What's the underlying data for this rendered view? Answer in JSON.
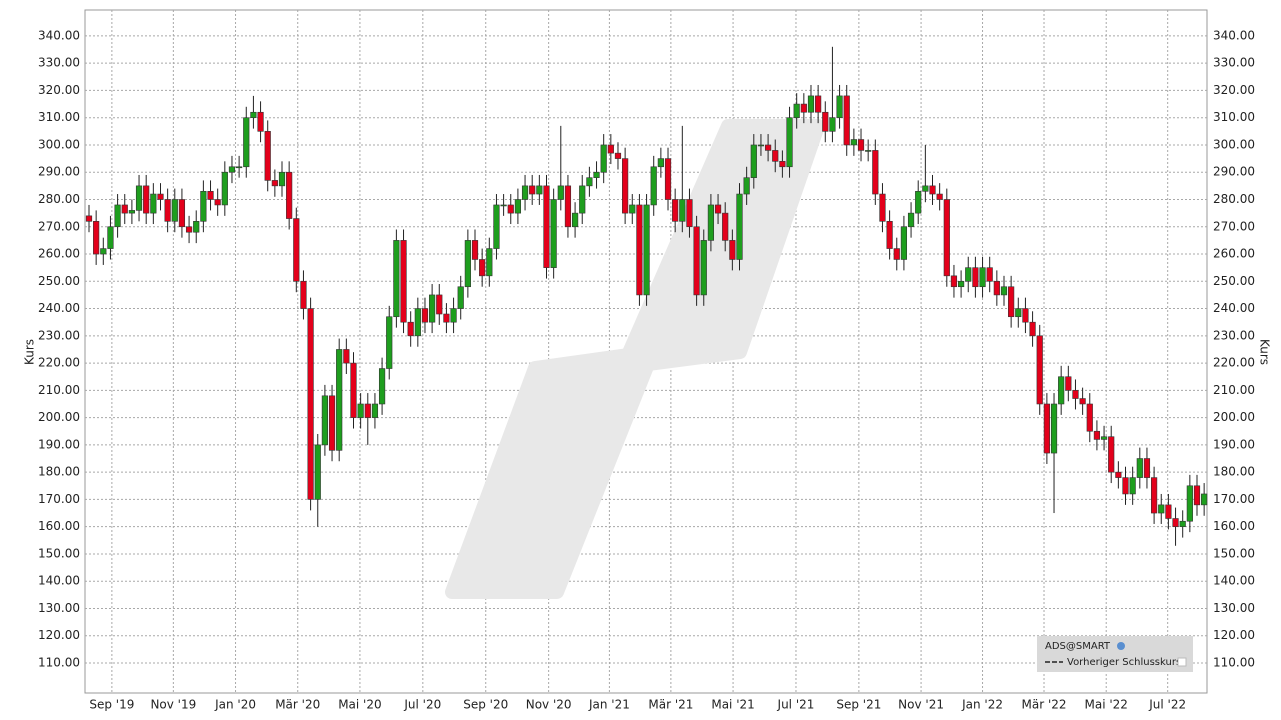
{
  "chart_data": {
    "type": "candlestick",
    "y_label": "Kurs",
    "legend": [
      "ADS@SMART",
      "Vorheriger Schlusskurs"
    ],
    "up_color": "#1e9e1e",
    "down_color": "#e3001b",
    "grid": true,
    "open": [
      274,
      272,
      260,
      262,
      270,
      278,
      275,
      276,
      285,
      275,
      282,
      280,
      272,
      280,
      270,
      268,
      272,
      283,
      280,
      278,
      290,
      292,
      292,
      310,
      312,
      305,
      287,
      285,
      290,
      273,
      250,
      240,
      170,
      190,
      208,
      188,
      225,
      220,
      200,
      205,
      200,
      205,
      218,
      237,
      265,
      235,
      230,
      240,
      235,
      245,
      238,
      235,
      240,
      248,
      265,
      258,
      252,
      262,
      278,
      278,
      275,
      280,
      285,
      282,
      285,
      255,
      280,
      285,
      270,
      275,
      285,
      288,
      290,
      300,
      297,
      295,
      275,
      278,
      245,
      278,
      292,
      295,
      280,
      272,
      280,
      270,
      245,
      265,
      278,
      275,
      265,
      258,
      282,
      288,
      300,
      300,
      298,
      294,
      292,
      310,
      315,
      312,
      318,
      312,
      305,
      310,
      318,
      300,
      302,
      298,
      298,
      282,
      272,
      262,
      258,
      270,
      275,
      283,
      285,
      282,
      280,
      252,
      248,
      250,
      255,
      248,
      255,
      250,
      245,
      248,
      237,
      240,
      235,
      230,
      205,
      187,
      205,
      215,
      210,
      207,
      205,
      195,
      192,
      193,
      180,
      178,
      172,
      178,
      185,
      178,
      165,
      168,
      163,
      160,
      162,
      175,
      168
    ],
    "high": [
      278,
      276,
      266,
      274,
      282,
      282,
      280,
      289,
      289,
      286,
      286,
      284,
      284,
      284,
      274,
      276,
      287,
      287,
      284,
      294,
      296,
      296,
      314,
      318,
      316,
      309,
      291,
      294,
      294,
      277,
      254,
      244,
      194,
      212,
      212,
      229,
      229,
      224,
      209,
      209,
      209,
      222,
      241,
      269,
      269,
      239,
      244,
      244,
      249,
      249,
      242,
      244,
      252,
      269,
      269,
      262,
      266,
      282,
      282,
      282,
      284,
      289,
      289,
      289,
      289,
      284,
      307,
      289,
      279,
      289,
      292,
      294,
      304,
      304,
      301,
      299,
      282,
      282,
      282,
      296,
      299,
      299,
      284,
      307,
      284,
      274,
      269,
      282,
      282,
      279,
      269,
      286,
      292,
      304,
      304,
      304,
      302,
      298,
      314,
      319,
      319,
      322,
      322,
      316,
      336,
      322,
      322,
      306,
      306,
      302,
      302,
      286,
      276,
      266,
      274,
      279,
      287,
      300,
      289,
      286,
      284,
      256,
      254,
      259,
      259,
      259,
      259,
      254,
      252,
      252,
      244,
      244,
      239,
      234,
      209,
      209,
      219,
      219,
      214,
      211,
      209,
      199,
      197,
      197,
      184,
      182,
      182,
      189,
      189,
      182,
      172,
      172,
      167,
      166,
      179,
      179,
      176
    ],
    "low": [
      268,
      256,
      256,
      258,
      266,
      271,
      271,
      272,
      271,
      271,
      276,
      268,
      268,
      266,
      264,
      264,
      268,
      276,
      274,
      274,
      286,
      288,
      288,
      306,
      301,
      283,
      281,
      281,
      269,
      246,
      236,
      166,
      160,
      186,
      184,
      184,
      216,
      196,
      196,
      190,
      196,
      201,
      214,
      233,
      231,
      226,
      226,
      231,
      231,
      234,
      231,
      231,
      236,
      244,
      254,
      248,
      248,
      258,
      274,
      271,
      271,
      276,
      278,
      278,
      251,
      251,
      276,
      266,
      266,
      271,
      281,
      284,
      286,
      293,
      291,
      271,
      271,
      241,
      241,
      274,
      288,
      276,
      268,
      268,
      266,
      241,
      241,
      261,
      271,
      261,
      254,
      254,
      278,
      284,
      296,
      294,
      290,
      288,
      288,
      306,
      308,
      308,
      308,
      301,
      301,
      306,
      296,
      296,
      294,
      294,
      278,
      268,
      258,
      254,
      254,
      266,
      271,
      279,
      278,
      276,
      248,
      244,
      244,
      246,
      244,
      244,
      246,
      241,
      241,
      233,
      233,
      231,
      226,
      201,
      183,
      165,
      201,
      206,
      203,
      201,
      191,
      188,
      188,
      176,
      174,
      168,
      168,
      174,
      174,
      161,
      161,
      159,
      153,
      156,
      158,
      164,
      164
    ],
    "close": [
      272,
      260,
      262,
      270,
      278,
      275,
      276,
      285,
      275,
      282,
      280,
      272,
      280,
      270,
      268,
      272,
      283,
      280,
      278,
      290,
      292,
      292,
      310,
      312,
      305,
      287,
      285,
      290,
      273,
      250,
      240,
      170,
      190,
      208,
      188,
      225,
      220,
      200,
      205,
      200,
      205,
      218,
      237,
      265,
      235,
      230,
      240,
      235,
      245,
      238,
      235,
      240,
      248,
      265,
      258,
      252,
      262,
      278,
      278,
      275,
      280,
      285,
      282,
      285,
      255,
      280,
      285,
      270,
      275,
      285,
      288,
      290,
      300,
      297,
      295,
      275,
      278,
      245,
      278,
      292,
      295,
      280,
      272,
      280,
      270,
      245,
      265,
      278,
      275,
      265,
      258,
      282,
      288,
      300,
      300,
      298,
      294,
      292,
      310,
      315,
      312,
      318,
      312,
      305,
      310,
      318,
      300,
      302,
      298,
      298,
      282,
      272,
      262,
      258,
      270,
      275,
      283,
      285,
      282,
      280,
      252,
      248,
      250,
      255,
      248,
      255,
      250,
      245,
      248,
      237,
      240,
      235,
      230,
      205,
      187,
      205,
      215,
      210,
      207,
      205,
      195,
      192,
      193,
      180,
      178,
      172,
      178,
      185,
      178,
      165,
      168,
      163,
      160,
      162,
      175,
      168,
      172
    ],
    "xlim": [
      -0.56,
      156.4
    ],
    "xticks": [
      {
        "value": 3.2,
        "label": "Sep '19"
      },
      {
        "value": 11.8,
        "label": "Nov '19"
      },
      {
        "value": 20.5,
        "label": "Jan '20"
      },
      {
        "value": 29.2,
        "label": "Mär '20"
      },
      {
        "value": 37.9,
        "label": "Mai '20"
      },
      {
        "value": 46.7,
        "label": "Jul '20"
      },
      {
        "value": 55.5,
        "label": "Sep '20"
      },
      {
        "value": 64.3,
        "label": "Nov '20"
      },
      {
        "value": 72.8,
        "label": "Jan '21"
      },
      {
        "value": 81.4,
        "label": "Mär '21"
      },
      {
        "value": 90.1,
        "label": "Mai '21"
      },
      {
        "value": 98.9,
        "label": "Jul '21"
      },
      {
        "value": 107.7,
        "label": "Sep '21"
      },
      {
        "value": 116.4,
        "label": "Nov '21"
      },
      {
        "value": 125.0,
        "label": "Jan '22"
      },
      {
        "value": 133.6,
        "label": "Mär '22"
      },
      {
        "value": 142.3,
        "label": "Mai '22"
      },
      {
        "value": 150.9,
        "label": "Jul '22"
      }
    ],
    "ylim": [
      99,
      349.5
    ],
    "yticks": [
      {
        "value": 110,
        "label": "110.00"
      },
      {
        "value": 120,
        "label": "120.00"
      },
      {
        "value": 130,
        "label": "130.00"
      },
      {
        "value": 140,
        "label": "140.00"
      },
      {
        "value": 150,
        "label": "150.00"
      },
      {
        "value": 160,
        "label": "160.00"
      },
      {
        "value": 170,
        "label": "170.00"
      },
      {
        "value": 180,
        "label": "180.00"
      },
      {
        "value": 190,
        "label": "190.00"
      },
      {
        "value": 200,
        "label": "200.00"
      },
      {
        "value": 210,
        "label": "210.00"
      },
      {
        "value": 220,
        "label": "220.00"
      },
      {
        "value": 230,
        "label": "230.00"
      },
      {
        "value": 240,
        "label": "240.00"
      },
      {
        "value": 250,
        "label": "250.00"
      },
      {
        "value": 260,
        "label": "260.00"
      },
      {
        "value": 270,
        "label": "270.00"
      },
      {
        "value": 280,
        "label": "280.00"
      },
      {
        "value": 290,
        "label": "290.00"
      },
      {
        "value": 300,
        "label": "300.00"
      },
      {
        "value": 310,
        "label": "310.00"
      },
      {
        "value": 320,
        "label": "320.00"
      },
      {
        "value": 330,
        "label": "330.00"
      },
      {
        "value": 340,
        "label": "340.00"
      }
    ]
  }
}
